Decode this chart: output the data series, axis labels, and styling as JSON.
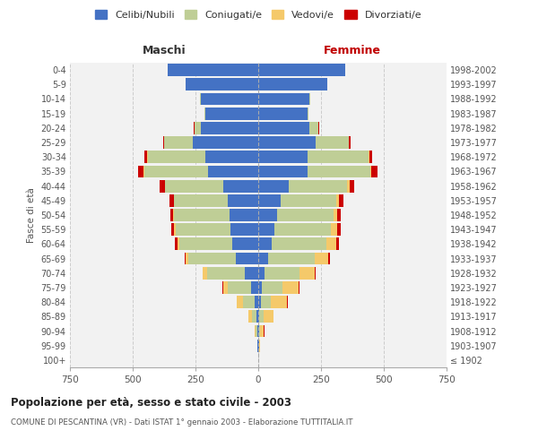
{
  "age_groups": [
    "100+",
    "95-99",
    "90-94",
    "85-89",
    "80-84",
    "75-79",
    "70-74",
    "65-69",
    "60-64",
    "55-59",
    "50-54",
    "45-49",
    "40-44",
    "35-39",
    "30-34",
    "25-29",
    "20-24",
    "15-19",
    "10-14",
    "5-9",
    "0-4"
  ],
  "birth_years": [
    "≤ 1902",
    "1903-1907",
    "1908-1912",
    "1913-1917",
    "1918-1922",
    "1923-1927",
    "1928-1932",
    "1933-1937",
    "1938-1942",
    "1943-1947",
    "1948-1952",
    "1953-1957",
    "1958-1962",
    "1963-1967",
    "1968-1972",
    "1973-1977",
    "1978-1982",
    "1983-1987",
    "1988-1992",
    "1993-1997",
    "1998-2002"
  ],
  "maschi": {
    "celibi": [
      0,
      2,
      5,
      8,
      15,
      30,
      55,
      90,
      105,
      110,
      115,
      120,
      140,
      200,
      210,
      260,
      230,
      210,
      230,
      290,
      360
    ],
    "coniugati": [
      0,
      2,
      5,
      18,
      45,
      90,
      150,
      190,
      210,
      220,
      220,
      215,
      230,
      255,
      230,
      115,
      25,
      5,
      2,
      0,
      0
    ],
    "vedovi": [
      0,
      0,
      3,
      12,
      25,
      20,
      15,
      10,
      8,
      5,
      3,
      2,
      2,
      2,
      2,
      0,
      0,
      0,
      0,
      0,
      0
    ],
    "divorziati": [
      0,
      0,
      0,
      1,
      2,
      3,
      3,
      4,
      8,
      10,
      12,
      15,
      20,
      22,
      10,
      3,
      2,
      0,
      0,
      0,
      0
    ]
  },
  "femmine": {
    "nubili": [
      0,
      2,
      3,
      5,
      10,
      15,
      25,
      40,
      55,
      65,
      75,
      90,
      120,
      195,
      195,
      230,
      205,
      195,
      205,
      275,
      345
    ],
    "coniugate": [
      0,
      2,
      5,
      15,
      40,
      80,
      140,
      185,
      215,
      225,
      225,
      220,
      235,
      250,
      245,
      130,
      35,
      5,
      2,
      0,
      0
    ],
    "vedove": [
      0,
      3,
      15,
      40,
      65,
      65,
      60,
      55,
      40,
      25,
      15,
      10,
      8,
      5,
      3,
      2,
      0,
      0,
      0,
      0,
      0
    ],
    "divorziate": [
      0,
      0,
      1,
      2,
      3,
      4,
      5,
      5,
      10,
      12,
      15,
      18,
      20,
      25,
      12,
      5,
      2,
      0,
      0,
      0,
      0
    ]
  },
  "colors": {
    "celibi_nubili": "#4472C4",
    "coniugati": "#BFCE96",
    "vedovi": "#F5C96A",
    "divorziati": "#CC0000"
  },
  "title": "Popolazione per età, sesso e stato civile - 2003",
  "subtitle": "COMUNE DI PESCANTINA (VR) - Dati ISTAT 1° gennaio 2003 - Elaborazione TUTTITALIA.IT",
  "ylabel_left": "Fasce di età",
  "xlabel_left": "Maschi",
  "xlabel_right": "Femmine",
  "xlim": 750,
  "legend_labels": [
    "Celibi/Nubili",
    "Coniugati/e",
    "Vedovi/e",
    "Divorziati/e"
  ],
  "background_color": "#ffffff",
  "grid_color": "#cccccc"
}
